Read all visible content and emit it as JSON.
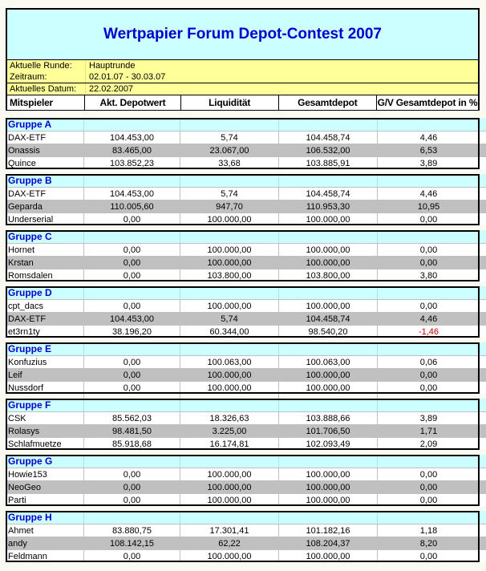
{
  "title": "Wertpapier Forum Depot-Contest 2007",
  "info": {
    "rows": [
      {
        "label": "Aktuelle Runde:",
        "value": "Hauptrunde"
      },
      {
        "label": "Zeitraum:",
        "value": "02.01.07 - 30.03.07"
      },
      {
        "label": "Aktuelles Datum:",
        "value": "22.02.2007"
      }
    ]
  },
  "columns": [
    "Mitspieler",
    "Akt. Depotwert",
    "Liquidität",
    "Gesamtdepot",
    "G/V Gesamtdepot in %"
  ],
  "groups": [
    {
      "name": "Gruppe A",
      "rows": [
        {
          "player": "DAX-ETF",
          "akt_depotwert": "104.453,00",
          "liquiditaet": "5,74",
          "gesamtdepot": "104.458,74",
          "gv_prozent": "4,46",
          "negative": false
        },
        {
          "player": "Onassis",
          "akt_depotwert": "83.465,00",
          "liquiditaet": "23.067,00",
          "gesamtdepot": "106.532,00",
          "gv_prozent": "6,53",
          "negative": false
        },
        {
          "player": "Quince",
          "akt_depotwert": "103.852,23",
          "liquiditaet": "33,68",
          "gesamtdepot": "103.885,91",
          "gv_prozent": "3,89",
          "negative": false
        }
      ]
    },
    {
      "name": "Gruppe B",
      "rows": [
        {
          "player": "DAX-ETF",
          "akt_depotwert": "104.453,00",
          "liquiditaet": "5,74",
          "gesamtdepot": "104.458,74",
          "gv_prozent": "4,46",
          "negative": false
        },
        {
          "player": "Geparda",
          "akt_depotwert": "110.005,60",
          "liquiditaet": "947,70",
          "gesamtdepot": "110.953,30",
          "gv_prozent": "10,95",
          "negative": false
        },
        {
          "player": "Underserial",
          "akt_depotwert": "0,00",
          "liquiditaet": "100.000,00",
          "gesamtdepot": "100.000,00",
          "gv_prozent": "0,00",
          "negative": false
        }
      ]
    },
    {
      "name": "Gruppe C",
      "rows": [
        {
          "player": "Hornet",
          "akt_depotwert": "0,00",
          "liquiditaet": "100.000,00",
          "gesamtdepot": "100.000,00",
          "gv_prozent": "0,00",
          "negative": false
        },
        {
          "player": "Krstan",
          "akt_depotwert": "0,00",
          "liquiditaet": "100.000,00",
          "gesamtdepot": "100.000,00",
          "gv_prozent": "0,00",
          "negative": false
        },
        {
          "player": "Romsdalen",
          "akt_depotwert": "0,00",
          "liquiditaet": "103.800,00",
          "gesamtdepot": "103.800,00",
          "gv_prozent": "3,80",
          "negative": false
        }
      ]
    },
    {
      "name": "Gruppe D",
      "rows": [
        {
          "player": "cpt_dacs",
          "akt_depotwert": "0,00",
          "liquiditaet": "100.000,00",
          "gesamtdepot": "100.000,00",
          "gv_prozent": "0,00",
          "negative": false
        },
        {
          "player": "DAX-ETF",
          "akt_depotwert": "104.453,00",
          "liquiditaet": "5,74",
          "gesamtdepot": "104.458,74",
          "gv_prozent": "4,46",
          "negative": false
        },
        {
          "player": "et3rn1ty",
          "akt_depotwert": "38.196,20",
          "liquiditaet": "60.344,00",
          "gesamtdepot": "98.540,20",
          "gv_prozent": "-1,46",
          "negative": true
        }
      ]
    },
    {
      "name": "Gruppe E",
      "ghost_row_after": true,
      "rows": [
        {
          "player": "Konfuzius",
          "akt_depotwert": "0,00",
          "liquiditaet": "100.063,00",
          "gesamtdepot": "100.063,00",
          "gv_prozent": "0,06",
          "negative": false
        },
        {
          "player": "Leif",
          "akt_depotwert": "0,00",
          "liquiditaet": "100.000,00",
          "gesamtdepot": "100.000,00",
          "gv_prozent": "0,00",
          "negative": false
        },
        {
          "player": "Nussdorf",
          "akt_depotwert": "0,00",
          "liquiditaet": "100.000,00",
          "gesamtdepot": "100.000,00",
          "gv_prozent": "0,00",
          "negative": false
        }
      ]
    },
    {
      "name": "Gruppe F",
      "rows": [
        {
          "player": "CSK",
          "akt_depotwert": "85.562,03",
          "liquiditaet": "18.326,63",
          "gesamtdepot": "103.888,66",
          "gv_prozent": "3,89",
          "negative": false
        },
        {
          "player": "Rolasys",
          "akt_depotwert": "98.481,50",
          "liquiditaet": "3.225,00",
          "gesamtdepot": "101.706,50",
          "gv_prozent": "1,71",
          "negative": false
        },
        {
          "player": "Schlafmuetze",
          "akt_depotwert": "85.918,68",
          "liquiditaet": "16.174,81",
          "gesamtdepot": "102.093,49",
          "gv_prozent": "2,09",
          "negative": false
        }
      ]
    },
    {
      "name": "Gruppe G",
      "rows": [
        {
          "player": "Howie153",
          "akt_depotwert": "0,00",
          "liquiditaet": "100.000,00",
          "gesamtdepot": "100.000,00",
          "gv_prozent": "0,00",
          "negative": false
        },
        {
          "player": "NeoGeo",
          "akt_depotwert": "0,00",
          "liquiditaet": "100.000,00",
          "gesamtdepot": "100.000,00",
          "gv_prozent": "0,00",
          "negative": false
        },
        {
          "player": "Parti",
          "akt_depotwert": "0,00",
          "liquiditaet": "100.000,00",
          "gesamtdepot": "100.000,00",
          "gv_prozent": "0,00",
          "negative": false
        }
      ]
    },
    {
      "name": "Gruppe H",
      "rows": [
        {
          "player": "Ahmet",
          "akt_depotwert": "83.880,75",
          "liquiditaet": "17.301,41",
          "gesamtdepot": "101.182,16",
          "gv_prozent": "1,18",
          "negative": false
        },
        {
          "player": "andy",
          "akt_depotwert": "108.142,15",
          "liquiditaet": "62,22",
          "gesamtdepot": "108.204,37",
          "gv_prozent": "8,20",
          "negative": false
        },
        {
          "player": "Feldmann",
          "akt_depotwert": "0,00",
          "liquiditaet": "100.000,00",
          "gesamtdepot": "100.000,00",
          "gv_prozent": "0,00",
          "negative": false
        }
      ]
    }
  ],
  "colors": {
    "page_background": "#FAFAF2",
    "title_background": "#CCFFFF",
    "info_background": "#FFFF99",
    "group_header_background": "#CCFFFF",
    "alt_row_background": "#C0C0C0",
    "accent_blue": "#0000CC",
    "negative_red": "#CC0000",
    "grid_line": "#C0C0C0",
    "border_black": "#000000"
  }
}
